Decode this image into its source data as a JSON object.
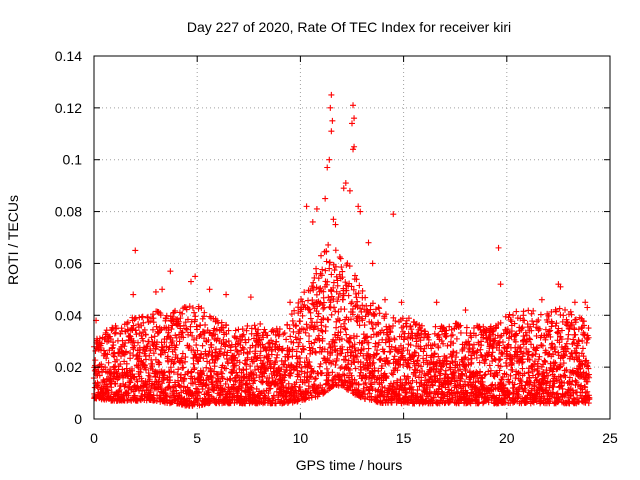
{
  "colors": {
    "series": "#ff0000",
    "frame": "#000000",
    "grid": "#a0a0a0"
  },
  "chart_data": {
    "type": "scatter",
    "title": "Day 227 of 2020, Rate Of TEC Index for receiver kiri",
    "xlabel": "GPS time / hours",
    "ylabel": "ROTI / TECUs",
    "xlim": [
      0,
      25
    ],
    "ylim": [
      0,
      0.14
    ],
    "grid": true,
    "xticks": [
      0,
      5,
      10,
      15,
      20,
      25
    ],
    "yticks": [
      0,
      0.02,
      0.04,
      0.06,
      0.08,
      0.1,
      0.12,
      0.14
    ],
    "xtick_labels": [
      "0",
      "5",
      "10",
      "15",
      "20",
      "25"
    ],
    "ytick_labels": [
      "0",
      "0.02",
      "0.04",
      "0.06",
      "0.08",
      "0.1",
      "0.12",
      "0.14"
    ],
    "series": [
      {
        "name": "ROTI",
        "marker": "plus",
        "color": "#ff0000",
        "envelope": {
          "x": [
            0,
            0.5,
            1,
            1.5,
            2,
            2.5,
            3,
            3.5,
            4,
            4.5,
            5,
            5.5,
            6,
            6.5,
            7,
            7.5,
            8,
            8.5,
            9,
            9.5,
            10,
            10.5,
            11,
            11.5,
            12,
            12.5,
            13,
            13.5,
            14,
            14.5,
            15,
            15.5,
            16,
            16.5,
            17,
            17.5,
            18,
            18.5,
            19,
            19.5,
            20,
            20.5,
            21,
            21.5,
            22,
            22.5,
            23,
            23.5,
            24
          ],
          "low": [
            0.008,
            0.007,
            0.007,
            0.007,
            0.007,
            0.007,
            0.007,
            0.006,
            0.006,
            0.005,
            0.005,
            0.006,
            0.006,
            0.006,
            0.006,
            0.006,
            0.006,
            0.006,
            0.006,
            0.006,
            0.007,
            0.008,
            0.009,
            0.012,
            0.013,
            0.01,
            0.008,
            0.007,
            0.006,
            0.006,
            0.006,
            0.006,
            0.006,
            0.006,
            0.006,
            0.006,
            0.006,
            0.006,
            0.006,
            0.006,
            0.006,
            0.006,
            0.006,
            0.006,
            0.006,
            0.006,
            0.006,
            0.006,
            0.006
          ],
          "high": [
            0.03,
            0.034,
            0.036,
            0.038,
            0.04,
            0.04,
            0.042,
            0.04,
            0.042,
            0.044,
            0.045,
            0.04,
            0.04,
            0.036,
            0.036,
            0.036,
            0.037,
            0.034,
            0.036,
            0.04,
            0.046,
            0.055,
            0.062,
            0.07,
            0.065,
            0.058,
            0.05,
            0.045,
            0.042,
            0.04,
            0.04,
            0.038,
            0.037,
            0.036,
            0.037,
            0.037,
            0.036,
            0.036,
            0.036,
            0.037,
            0.04,
            0.042,
            0.042,
            0.042,
            0.042,
            0.044,
            0.042,
            0.04,
            0.036
          ]
        },
        "outliers": [
          [
            0.1,
            0.038
          ],
          [
            0.15,
            0.029
          ],
          [
            1.9,
            0.048
          ],
          [
            2.0,
            0.065
          ],
          [
            3.0,
            0.049
          ],
          [
            3.3,
            0.05
          ],
          [
            3.7,
            0.057
          ],
          [
            4.7,
            0.053
          ],
          [
            4.9,
            0.055
          ],
          [
            5.6,
            0.05
          ],
          [
            6.4,
            0.048
          ],
          [
            7.6,
            0.047
          ],
          [
            9.5,
            0.045
          ],
          [
            10.3,
            0.082
          ],
          [
            10.6,
            0.076
          ],
          [
            10.8,
            0.081
          ],
          [
            11.0,
            0.063
          ],
          [
            11.2,
            0.085
          ],
          [
            11.3,
            0.097
          ],
          [
            11.4,
            0.1
          ],
          [
            11.45,
            0.12
          ],
          [
            11.5,
            0.125
          ],
          [
            11.55,
            0.115
          ],
          [
            11.5,
            0.111
          ],
          [
            11.6,
            0.077
          ],
          [
            11.7,
            0.075
          ],
          [
            12.1,
            0.089
          ],
          [
            12.2,
            0.091
          ],
          [
            12.4,
            0.088
          ],
          [
            12.55,
            0.121
          ],
          [
            12.6,
            0.116
          ],
          [
            12.5,
            0.114
          ],
          [
            12.6,
            0.105
          ],
          [
            12.55,
            0.104
          ],
          [
            12.8,
            0.082
          ],
          [
            12.9,
            0.08
          ],
          [
            13.3,
            0.068
          ],
          [
            13.5,
            0.06
          ],
          [
            14.1,
            0.046
          ],
          [
            14.5,
            0.079
          ],
          [
            14.9,
            0.045
          ],
          [
            16.6,
            0.045
          ],
          [
            18.0,
            0.042
          ],
          [
            19.6,
            0.066
          ],
          [
            19.7,
            0.052
          ],
          [
            20.8,
            0.04
          ],
          [
            21.7,
            0.046
          ],
          [
            22.5,
            0.052
          ],
          [
            22.6,
            0.051
          ],
          [
            23.3,
            0.045
          ],
          [
            23.8,
            0.045
          ],
          [
            23.9,
            0.043
          ]
        ]
      }
    ]
  }
}
